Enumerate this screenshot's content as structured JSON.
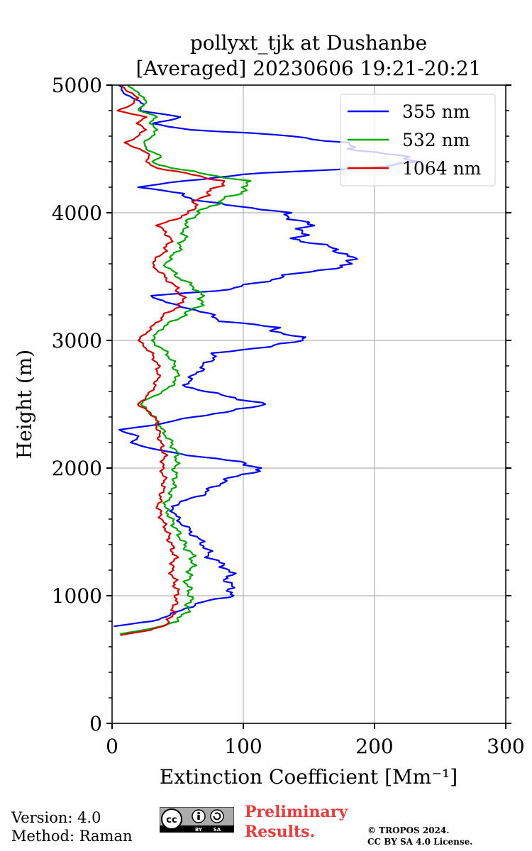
{
  "chart_data": {
    "type": "line",
    "title_line1": "pollyxt_tjk at Dushanbe",
    "title_line2": "[Averaged] 20230606 19:21-20:21",
    "xlabel": "Extinction Coefficient [Mm⁻¹]",
    "ylabel": "Height (m)",
    "xlim": [
      0,
      300
    ],
    "ylim": [
      0,
      5000
    ],
    "xticks": [
      0,
      100,
      200,
      300
    ],
    "yticks": [
      0,
      1000,
      2000,
      3000,
      4000,
      5000
    ],
    "grid": true,
    "legend_position": "top-right",
    "series": [
      {
        "name": "355 nm",
        "color": "#0000ff",
        "heights": [
          760,
          800,
          850,
          900,
          950,
          1000,
          1050,
          1100,
          1200,
          1300,
          1400,
          1500,
          1600,
          1700,
          1800,
          1900,
          2000,
          2050,
          2100,
          2150,
          2200,
          2250,
          2300,
          2350,
          2400,
          2450,
          2500,
          2550,
          2600,
          2650,
          2700,
          2800,
          2900,
          3000,
          3050,
          3100,
          3150,
          3200,
          3250,
          3300,
          3350,
          3400,
          3500,
          3600,
          3700,
          3800,
          3900,
          4000,
          4050,
          4100,
          4150,
          4200,
          4250,
          4300,
          4350,
          4400,
          4450,
          4500,
          4550,
          4600,
          4650,
          4700,
          4750,
          4800,
          4850,
          4900,
          4950,
          5000
        ],
        "values": [
          2,
          30,
          45,
          55,
          70,
          90,
          92,
          88,
          90,
          75,
          70,
          60,
          50,
          45,
          70,
          85,
          115,
          95,
          60,
          30,
          15,
          20,
          5,
          40,
          60,
          95,
          115,
          95,
          70,
          55,
          60,
          70,
          80,
          150,
          130,
          125,
          85,
          75,
          60,
          40,
          30,
          90,
          130,
          185,
          175,
          140,
          150,
          130,
          100,
          60,
          55,
          20,
          55,
          100,
          190,
          235,
          215,
          185,
          175,
          140,
          60,
          30,
          55,
          20,
          25,
          15,
          8,
          5
        ]
      },
      {
        "name": "532 nm",
        "color": "#00aa00",
        "heights": [
          700,
          750,
          800,
          850,
          900,
          1000,
          1100,
          1200,
          1300,
          1400,
          1500,
          1600,
          1700,
          1800,
          1900,
          2000,
          2100,
          2200,
          2300,
          2400,
          2500,
          2550,
          2600,
          2700,
          2800,
          2900,
          3000,
          3100,
          3200,
          3300,
          3400,
          3500,
          3600,
          3700,
          3800,
          3900,
          4000,
          4050,
          4100,
          4150,
          4200,
          4250,
          4300,
          4350,
          4400,
          4450,
          4500,
          4550,
          4600,
          4650,
          4700,
          4750,
          4800,
          4850,
          4900,
          4950,
          5000
        ],
        "values": [
          5,
          35,
          48,
          55,
          58,
          60,
          57,
          60,
          62,
          55,
          50,
          45,
          40,
          45,
          48,
          48,
          50,
          45,
          38,
          32,
          22,
          28,
          40,
          50,
          48,
          42,
          30,
          38,
          55,
          70,
          65,
          50,
          40,
          50,
          55,
          55,
          65,
          75,
          85,
          95,
          105,
          100,
          75,
          45,
          30,
          38,
          25,
          25,
          30,
          35,
          28,
          35,
          20,
          25,
          25,
          18,
          12
        ]
      },
      {
        "name": "1064 nm",
        "color": "#dd0000",
        "heights": [
          690,
          730,
          780,
          850,
          950,
          1000,
          1100,
          1200,
          1300,
          1400,
          1500,
          1600,
          1700,
          1800,
          1900,
          2000,
          2100,
          2200,
          2300,
          2400,
          2500,
          2550,
          2600,
          2700,
          2800,
          2900,
          3000,
          3100,
          3200,
          3300,
          3400,
          3500,
          3600,
          3700,
          3800,
          3900,
          4000,
          4100,
          4200,
          4250,
          4300,
          4350,
          4400,
          4450,
          4500,
          4550,
          4600,
          4650,
          4700,
          4750,
          4800,
          4850,
          4900,
          4950,
          5000
        ],
        "values": [
          5,
          30,
          42,
          46,
          48,
          50,
          48,
          45,
          48,
          45,
          42,
          38,
          35,
          38,
          40,
          38,
          40,
          37,
          35,
          33,
          20,
          25,
          30,
          35,
          35,
          30,
          20,
          30,
          40,
          55,
          50,
          40,
          30,
          40,
          45,
          35,
          60,
          65,
          80,
          85,
          60,
          35,
          25,
          30,
          20,
          10,
          20,
          25,
          20,
          25,
          5,
          15,
          20,
          12,
          8
        ]
      }
    ]
  },
  "footer": {
    "version": "Version: 4.0",
    "method": "Method: Raman",
    "preliminary_line1": "Preliminary",
    "preliminary_line2": "Results.",
    "copyright_line1": "© TROPOS 2024.",
    "copyright_line2": "CC BY SA 4.0 License.",
    "badge_by": "BY",
    "badge_sa": "SA"
  }
}
